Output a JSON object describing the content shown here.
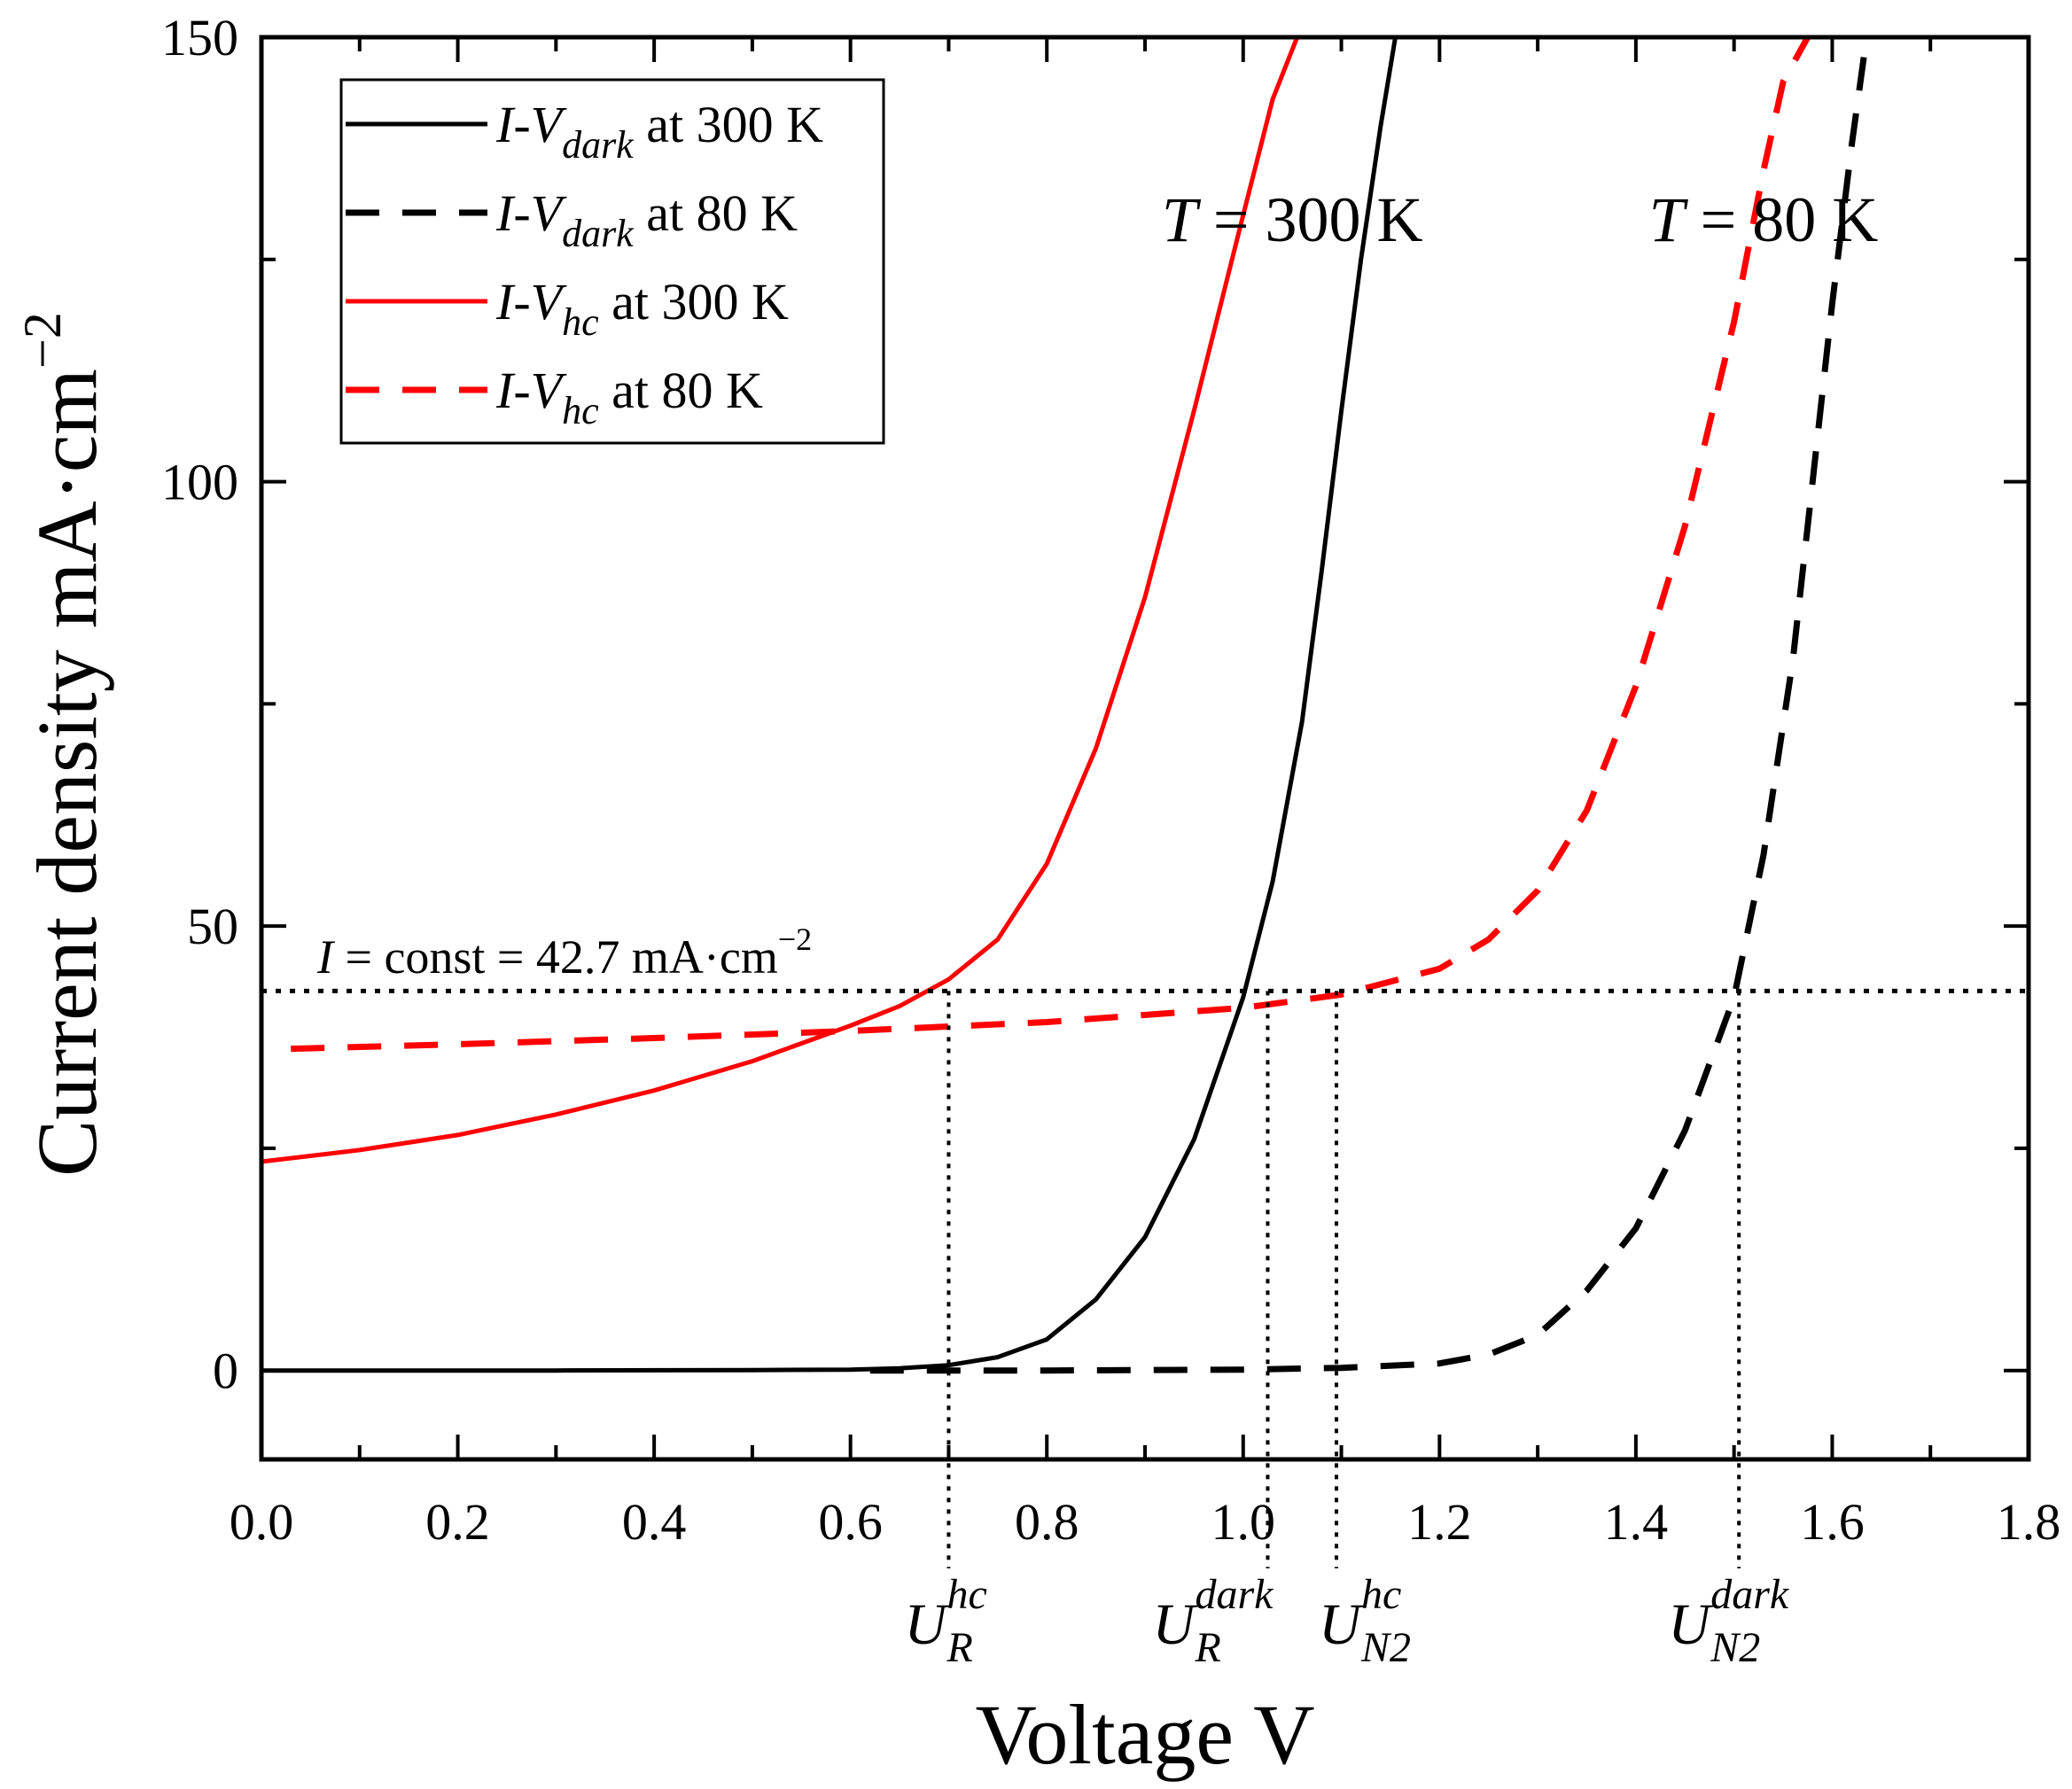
{
  "chart_data": {
    "type": "line",
    "title": "",
    "xlabel": "Voltage V",
    "ylabel": "Current density mA·cm",
    "ylabel_sup": "−2",
    "xlim": [
      0.0,
      1.8
    ],
    "ylim": [
      -10,
      150
    ],
    "xticks": [
      0.0,
      0.2,
      0.4,
      0.6,
      0.8,
      1.0,
      1.2,
      1.4,
      1.6,
      1.8
    ],
    "xtick_labels": [
      "0.0",
      "0.2",
      "0.4",
      "0.6",
      "0.8",
      "1.0",
      "1.2",
      "1.4",
      "1.6",
      "1.8"
    ],
    "yticks": [
      0,
      50,
      100,
      150
    ],
    "ytick_labels": [
      "0",
      "50",
      "100",
      "150"
    ],
    "grid": false,
    "legend_position": "top-left",
    "series": [
      {
        "name": "I-V dark at 300 K",
        "legend_main": "I-V",
        "legend_sub": "dark",
        "legend_rest": " at 300 K",
        "color": "#000000",
        "dash": "solid",
        "x": [
          0.0,
          0.3,
          0.5,
          0.6,
          0.65,
          0.7,
          0.75,
          0.8,
          0.85,
          0.9,
          0.95,
          1.0,
          1.03,
          1.06,
          1.08,
          1.1,
          1.12,
          1.14,
          1.155
        ],
        "y": [
          0.0,
          0.0,
          0.05,
          0.1,
          0.25,
          0.6,
          1.5,
          3.5,
          8,
          15,
          26,
          42,
          55,
          73,
          90,
          108,
          125,
          140,
          150
        ]
      },
      {
        "name": "I-V dark at 80 K",
        "legend_main": "I-V",
        "legend_sub": "dark",
        "legend_rest": " at 80 K",
        "color": "#000000",
        "dash": "dashed",
        "x": [
          0.62,
          0.8,
          1.0,
          1.1,
          1.2,
          1.25,
          1.3,
          1.35,
          1.4,
          1.45,
          1.5,
          1.53,
          1.56,
          1.58,
          1.6,
          1.62,
          1.635
        ],
        "y": [
          0.0,
          0.0,
          0.1,
          0.3,
          0.8,
          1.8,
          4,
          9,
          16,
          27,
          42,
          58,
          80,
          100,
          120,
          138,
          150
        ]
      },
      {
        "name": "I-V hc at 300 K",
        "legend_main": "I-V",
        "legend_sub": "hc",
        "legend_rest": " at 300 K",
        "color": "#ff0000",
        "dash": "solid",
        "x": [
          0.0,
          0.1,
          0.2,
          0.3,
          0.4,
          0.5,
          0.6,
          0.65,
          0.7,
          0.75,
          0.8,
          0.85,
          0.9,
          0.95,
          1.0,
          1.03,
          1.055
        ],
        "y": [
          23.5,
          24.8,
          26.5,
          28.8,
          31.5,
          34.8,
          38.8,
          41.0,
          44.0,
          48.5,
          57,
          70,
          87,
          108,
          130,
          143,
          150
        ]
      },
      {
        "name": "I-V hc at 80 K",
        "legend_main": "I-V",
        "legend_sub": "hc",
        "legend_rest": " at 80 K",
        "color": "#ff0000",
        "dash": "dashed",
        "x": [
          0.03,
          0.2,
          0.4,
          0.6,
          0.8,
          1.0,
          1.1,
          1.2,
          1.25,
          1.3,
          1.35,
          1.4,
          1.45,
          1.5,
          1.53,
          1.55,
          1.575
        ],
        "y": [
          36.2,
          36.7,
          37.4,
          38.2,
          39.2,
          40.8,
          42.3,
          45.2,
          48.5,
          54,
          63,
          77,
          95,
          118,
          135,
          145,
          150
        ]
      }
    ],
    "reference_line": {
      "label_italic": "I",
      "label_rest": " = const = 42.7 mA·cm",
      "label_sup": "−2",
      "y": 42.7
    },
    "markers": [
      {
        "main": "U",
        "sup": "hc",
        "sub": "R",
        "x": 0.7
      },
      {
        "main": "U",
        "sup": "dark",
        "sub": "R",
        "x": 1.025
      },
      {
        "main": "U",
        "sup": "hc",
        "sub": "N2",
        "x": 1.095
      },
      {
        "main": "U",
        "sup": "dark",
        "sub": "N2",
        "x": 1.505
      }
    ],
    "annotations": [
      {
        "italic": "T",
        "rest": " = 300 K",
        "x": 1.05
      },
      {
        "italic": "T",
        "rest": " = 80 K",
        "x": 1.53
      }
    ]
  }
}
